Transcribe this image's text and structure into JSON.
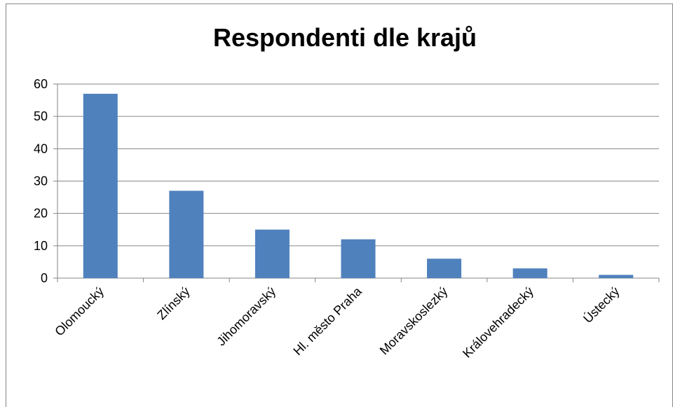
{
  "chart_data": {
    "type": "bar",
    "title": "Respondenti dle krajů",
    "categories": [
      "Olomoucký",
      "Zlínský",
      "Jihomoravský",
      "Hl. město Praha",
      "Moravskoslezký",
      "Královehradecký",
      "Ústecký"
    ],
    "values": [
      57,
      27,
      15,
      12,
      6,
      3,
      1
    ],
    "color": "#4f81bd",
    "ylim": [
      0,
      60
    ],
    "yticks": [
      0,
      10,
      20,
      30,
      40,
      50,
      60
    ],
    "grid": true
  }
}
